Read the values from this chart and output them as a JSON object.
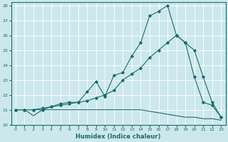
{
  "xlabel": "Humidex (Indice chaleur)",
  "background_color": "#cce8ec",
  "grid_color": "#ffffff",
  "line_color": "#1a6b6b",
  "xlim": [
    -0.5,
    23.5
  ],
  "ylim": [
    20,
    28.2
  ],
  "yticks": [
    20,
    21,
    22,
    23,
    24,
    25,
    26,
    27,
    28
  ],
  "xticks": [
    0,
    1,
    2,
    3,
    4,
    5,
    6,
    7,
    8,
    9,
    10,
    11,
    12,
    13,
    14,
    15,
    16,
    17,
    18,
    19,
    20,
    21,
    22,
    23
  ],
  "series1_x": [
    0,
    1,
    2,
    3,
    4,
    5,
    6,
    7,
    8,
    9,
    10,
    11,
    12,
    13,
    14,
    15,
    16,
    17,
    18,
    19,
    20,
    21,
    22,
    23
  ],
  "series1_y": [
    21.0,
    21.0,
    20.6,
    21.0,
    21.0,
    21.0,
    21.0,
    21.0,
    21.0,
    21.0,
    21.0,
    21.0,
    21.0,
    21.0,
    21.0,
    20.9,
    20.8,
    20.7,
    20.6,
    20.5,
    20.5,
    20.4,
    20.4,
    20.3
  ],
  "series2_x": [
    0,
    1,
    2,
    3,
    4,
    5,
    6,
    7,
    8,
    9,
    10,
    11,
    12,
    13,
    14,
    15,
    16,
    17,
    18,
    19,
    20,
    21,
    22,
    23
  ],
  "series2_y": [
    21.0,
    21.0,
    21.0,
    21.1,
    21.2,
    21.3,
    21.4,
    21.5,
    21.6,
    21.8,
    22.0,
    22.3,
    23.0,
    23.4,
    23.8,
    24.5,
    25.0,
    25.5,
    26.0,
    25.5,
    25.0,
    23.2,
    21.5,
    20.5
  ],
  "series3_x": [
    0,
    1,
    2,
    3,
    4,
    5,
    6,
    7,
    8,
    9,
    10,
    11,
    12,
    13,
    14,
    15,
    16,
    17,
    18,
    19,
    20,
    21,
    22,
    23
  ],
  "series3_y": [
    21.0,
    21.0,
    21.0,
    21.0,
    21.2,
    21.4,
    21.5,
    21.5,
    22.2,
    22.9,
    21.9,
    23.3,
    23.5,
    24.6,
    25.5,
    27.3,
    27.6,
    28.0,
    26.0,
    25.5,
    23.2,
    21.5,
    21.3,
    20.5
  ]
}
